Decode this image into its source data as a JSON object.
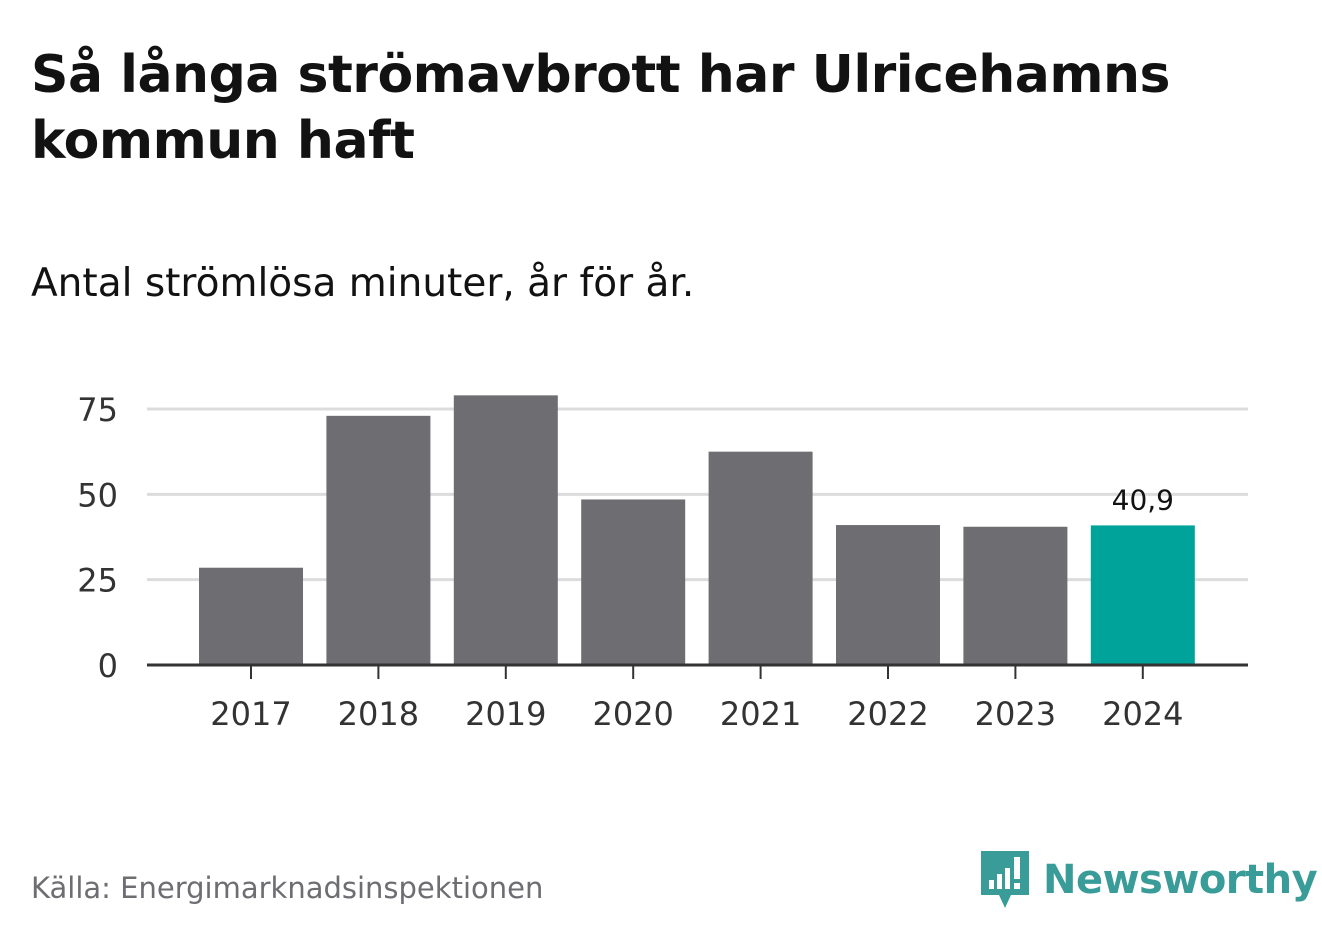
{
  "header": {
    "title": "Så långa strömavbrott har Ulricehamns kommun haft",
    "subtitle": "Antal strömlösa minuter, år för år."
  },
  "footer": {
    "source": "Källa: Energimarknadsinspektionen",
    "brand": "Newsworthy"
  },
  "colors": {
    "bar": "#6e6d72",
    "highlight": "#00a39a",
    "grid": "#dcdcdc",
    "axis": "#333333",
    "brand": "#3a9c98"
  },
  "chart_data": {
    "type": "bar",
    "title": "Så långa strömavbrott har Ulricehamns kommun haft",
    "subtitle": "Antal strömlösa minuter, år för år.",
    "categories": [
      "2017",
      "2018",
      "2019",
      "2020",
      "2021",
      "2022",
      "2023",
      "2024"
    ],
    "values": [
      28.5,
      73,
      79,
      48.5,
      62.5,
      41,
      40.5,
      40.9
    ],
    "highlight_index": 7,
    "highlight_label": "40,9",
    "ylim": [
      0,
      75
    ],
    "yticks": [
      0,
      25,
      50,
      75
    ],
    "xlabel": "",
    "ylabel": "",
    "grid": true,
    "legend": "none"
  }
}
